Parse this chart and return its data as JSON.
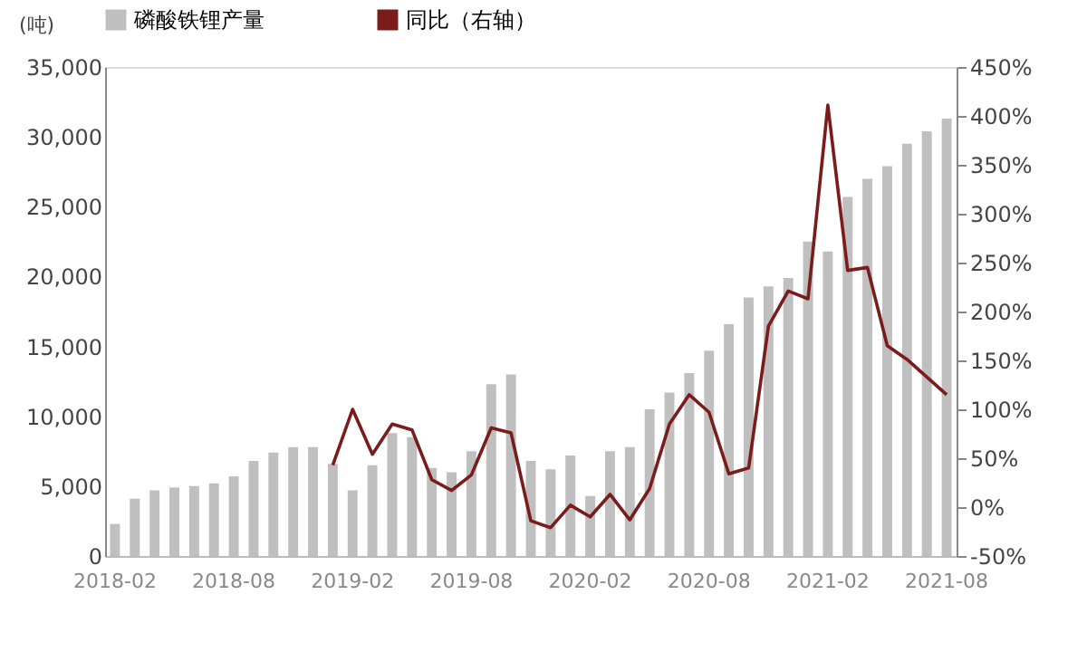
{
  "chart_data": {
    "type": "bar",
    "ylabel": "(吨)",
    "categories": [
      "2018-02",
      null,
      null,
      null,
      null,
      null,
      "2018-08",
      null,
      null,
      null,
      null,
      null,
      "2019-02",
      null,
      null,
      null,
      null,
      null,
      "2019-08",
      null,
      null,
      null,
      null,
      null,
      "2020-02",
      null,
      null,
      null,
      null,
      null,
      "2020-08",
      null,
      null,
      null,
      null,
      null,
      "2021-02",
      null,
      null,
      null,
      null,
      null,
      "2021-08"
    ],
    "series": [
      {
        "name": "磷酸铁锂产量",
        "color": "#bfbfbf",
        "values": [
          2300,
          4100,
          4700,
          4900,
          5000,
          5200,
          5700,
          6800,
          7400,
          7800,
          7800,
          6600,
          4700,
          6500,
          8800,
          8500,
          6300,
          6000,
          7500,
          12300,
          13000,
          6800,
          6200,
          7200,
          4300,
          7500,
          7800,
          10500,
          11700,
          13100,
          14700,
          16600,
          18500,
          19300,
          19900,
          22500,
          21800,
          25700,
          27000,
          27900,
          29500,
          30400,
          31300
        ]
      },
      {
        "name": "同比（右轴）",
        "type": "line",
        "axis": "y2",
        "color": "#7b1c1c",
        "values": [
          null,
          null,
          null,
          null,
          null,
          null,
          null,
          null,
          null,
          null,
          null,
          43,
          100,
          54,
          85,
          79,
          28,
          17,
          33,
          81,
          76,
          -14,
          -21,
          2,
          -10,
          13,
          -13,
          19,
          85,
          115,
          97,
          34,
          40,
          185,
          221,
          213,
          411,
          242,
          245,
          165,
          151,
          133,
          115
        ]
      }
    ],
    "ylim": [
      0,
      35000
    ],
    "yticks": [
      0,
      {
        "value": 5000,
        "label": "5,000"
      },
      {
        "value": 10000,
        "label": "10,000"
      },
      {
        "value": 15000,
        "label": "15,000"
      },
      {
        "value": 20000,
        "label": "20,000"
      },
      {
        "value": 25000,
        "label": "25,000"
      },
      {
        "value": 30000,
        "label": "30,000"
      },
      {
        "value": 35000,
        "label": "35,000"
      }
    ],
    "y2lim": [
      -50,
      450
    ],
    "y2ticks": [
      {
        "value": -50,
        "label": "-50%"
      },
      {
        "value": 0,
        "label": "0%"
      },
      {
        "value": 50,
        "label": "50%"
      },
      {
        "value": 100,
        "label": "100%"
      },
      {
        "value": 150,
        "label": "150%"
      },
      {
        "value": 200,
        "label": "200%"
      },
      {
        "value": 250,
        "label": "250%"
      },
      {
        "value": 300,
        "label": "300%"
      },
      {
        "value": 350,
        "label": "350%"
      },
      {
        "value": 400,
        "label": "400%"
      },
      {
        "value": 450,
        "label": "450%"
      }
    ],
    "grid": false,
    "legend": "top",
    "marker": "none",
    "line_style": "solid"
  }
}
